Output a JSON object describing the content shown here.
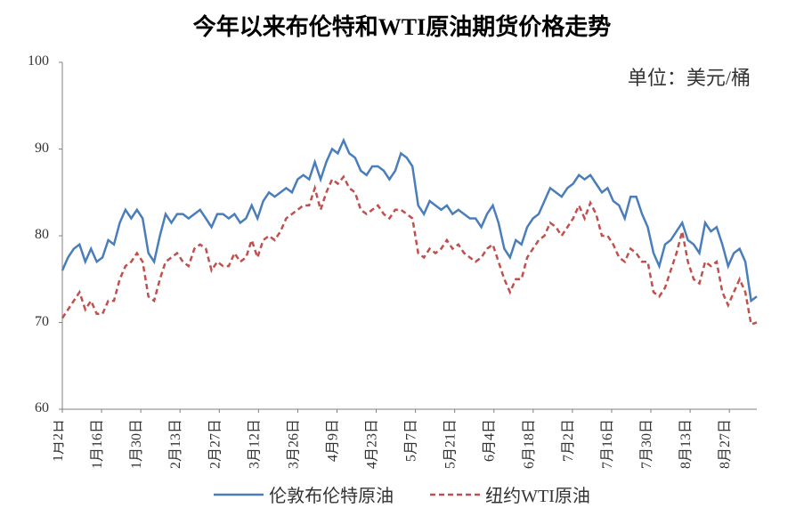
{
  "chart": {
    "type": "line",
    "title": "今年以来布伦特和WTI原油期货价格走势",
    "title_fontsize": 26,
    "title_fontweight": "bold",
    "unit_label": "单位：美元/桶",
    "unit_fontsize": 22,
    "background_color": "#ffffff",
    "axis_color": "#808080",
    "tick_color": "#808080",
    "tick_label_color": "#333333",
    "label_fontsize": 16,
    "ylim": [
      60,
      100
    ],
    "ytick_step": 10,
    "yticks": [
      60,
      70,
      80,
      90,
      100
    ],
    "xticks": [
      "1月2日",
      "1月16日",
      "1月30日",
      "2月13日",
      "2月27日",
      "3月12日",
      "3月26日",
      "4月9日",
      "4月23日",
      "5月7日",
      "5月21日",
      "6月4日",
      "6月18日",
      "7月2日",
      "7月16日",
      "7月30日",
      "8月13日",
      "8月27日"
    ],
    "xtick_rotation": -90,
    "series": [
      {
        "name": "伦敦布伦特原油",
        "color": "#4a7ebb",
        "line_width": 2.5,
        "dash": "solid",
        "values": [
          76.0,
          77.5,
          78.5,
          79.0,
          77.0,
          78.5,
          77.0,
          77.5,
          79.5,
          79.0,
          81.5,
          83.0,
          82.0,
          83.0,
          82.0,
          78.0,
          77.0,
          80.0,
          82.5,
          81.5,
          82.5,
          82.5,
          82.0,
          82.5,
          83.0,
          82.0,
          81.0,
          82.5,
          82.5,
          82.0,
          82.5,
          81.5,
          82.0,
          83.5,
          82.0,
          84.0,
          85.0,
          84.5,
          85.0,
          85.5,
          85.0,
          86.5,
          87.0,
          86.5,
          88.5,
          86.5,
          88.5,
          90.0,
          89.5,
          91.0,
          89.5,
          89.0,
          87.5,
          87.0,
          88.0,
          88.0,
          87.5,
          86.5,
          87.5,
          89.5,
          89.0,
          88.0,
          83.5,
          82.5,
          84.0,
          83.5,
          83.0,
          83.5,
          82.5,
          83.0,
          82.5,
          82.0,
          82.0,
          81.0,
          82.5,
          83.5,
          81.5,
          78.5,
          77.5,
          79.5,
          79.0,
          81.0,
          82.0,
          82.5,
          84.0,
          85.5,
          85.0,
          84.5,
          85.5,
          86.0,
          87.0,
          86.5,
          87.0,
          86.0,
          85.0,
          85.5,
          84.0,
          83.5,
          82.0,
          84.5,
          84.5,
          82.5,
          81.0,
          78.0,
          76.5,
          79.0,
          79.5,
          80.5,
          81.5,
          79.5,
          79.0,
          78.0,
          81.5,
          80.5,
          81.0,
          79.0,
          76.5,
          78.0,
          78.5,
          77.0,
          72.5,
          73.0
        ]
      },
      {
        "name": "纽约WTI原油",
        "color": "#c0504d",
        "line_width": 2.5,
        "dash": "6,4",
        "values": [
          70.5,
          71.5,
          72.5,
          73.5,
          71.5,
          72.5,
          71.0,
          71.0,
          72.5,
          72.5,
          75.0,
          76.5,
          77.0,
          78.0,
          77.0,
          73.0,
          72.5,
          75.0,
          77.0,
          77.5,
          78.0,
          77.0,
          76.5,
          78.5,
          79.0,
          78.5,
          76.0,
          77.0,
          76.5,
          76.5,
          78.0,
          77.0,
          77.5,
          79.5,
          77.5,
          79.5,
          80.0,
          79.5,
          80.5,
          82.0,
          82.5,
          83.0,
          83.5,
          83.5,
          85.5,
          83.0,
          85.0,
          86.5,
          86.0,
          86.8,
          85.5,
          85.0,
          83.0,
          82.5,
          83.0,
          83.5,
          82.5,
          82.0,
          83.0,
          83.0,
          82.5,
          82.0,
          78.0,
          77.5,
          78.5,
          78.0,
          78.5,
          79.5,
          78.5,
          79.0,
          78.0,
          77.5,
          77.0,
          77.5,
          78.5,
          79.0,
          77.0,
          75.0,
          73.5,
          75.0,
          75.0,
          77.5,
          78.5,
          79.5,
          80.0,
          81.5,
          81.0,
          80.0,
          81.0,
          82.0,
          83.5,
          82.0,
          83.8,
          82.5,
          80.0,
          80.0,
          79.0,
          77.5,
          77.0,
          78.5,
          78.0,
          77.0,
          77.0,
          73.5,
          73.0,
          74.0,
          76.0,
          78.0,
          80.5,
          77.0,
          75.0,
          74.5,
          77.0,
          76.5,
          77.0,
          73.5,
          72.0,
          73.5,
          75.0,
          73.5,
          69.8,
          70.0
        ]
      }
    ],
    "legend": {
      "position": "bottom",
      "fontsize": 20,
      "line_width": 56
    }
  }
}
